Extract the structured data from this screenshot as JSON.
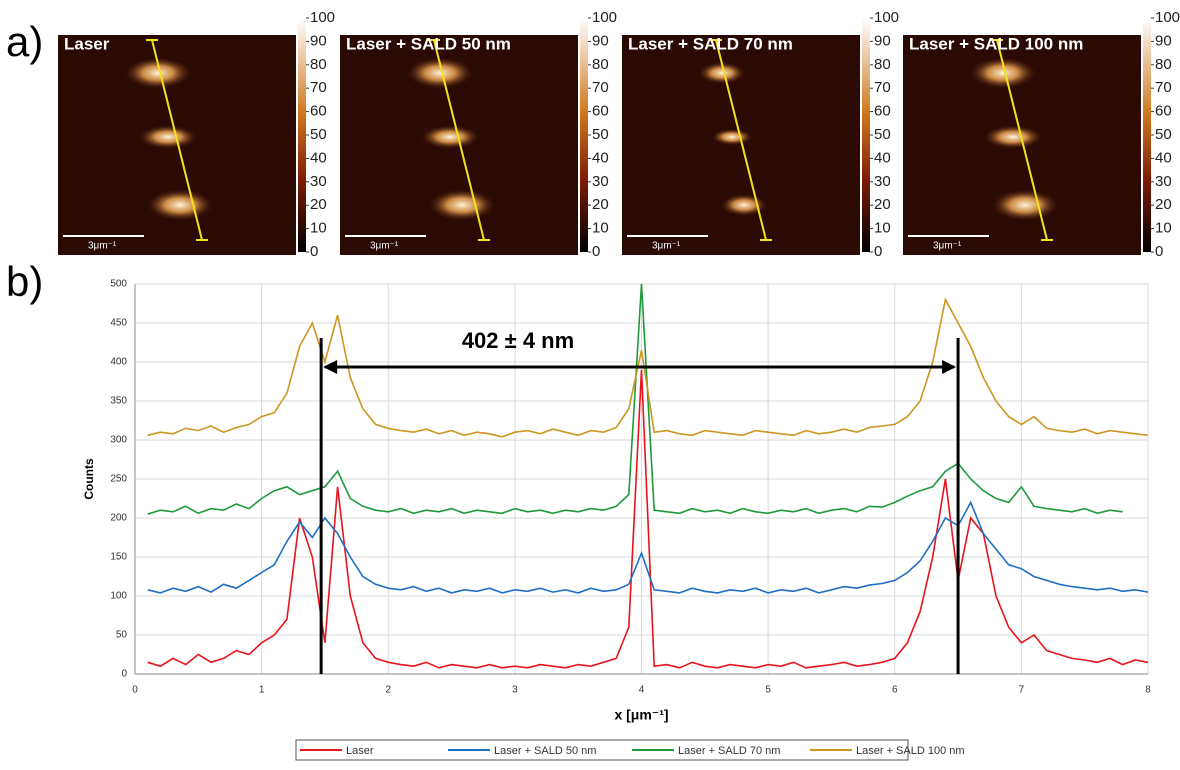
{
  "panel_labels": [
    "a)",
    "b)"
  ],
  "images": [
    {
      "label": "Laser",
      "scale_bar": "3μm⁻¹"
    },
    {
      "label": "Laser  + SALD 50 nm",
      "scale_bar": "3μm⁻¹"
    },
    {
      "label": "Laser  +  SALD 70 nm",
      "scale_bar": "3μm⁻¹"
    },
    {
      "label": "Laser + SALD 100 nm",
      "scale_bar": "3μm⁻¹"
    }
  ],
  "colorbar": {
    "lim": [
      0,
      100
    ],
    "ticks": [
      0,
      10,
      20,
      30,
      40,
      50,
      60,
      70,
      80,
      90,
      100
    ]
  },
  "chart_data": {
    "type": "line",
    "xlabel": "x [μm⁻¹]",
    "ylabel": "Counts",
    "annotation": "402 ± 4 nm",
    "vlines": [
      1.47,
      6.5
    ],
    "xlim": [
      0,
      8
    ],
    "ylim": [
      0,
      500
    ],
    "xticks": [
      0,
      1,
      2,
      3,
      4,
      5,
      6,
      7,
      8
    ],
    "yticks": [
      0,
      50,
      100,
      150,
      200,
      250,
      300,
      350,
      400,
      450,
      500
    ],
    "grid": true,
    "legend": "bottom",
    "x": [
      0.1,
      0.2,
      0.3,
      0.4,
      0.5,
      0.6,
      0.7,
      0.8,
      0.9,
      1.0,
      1.1,
      1.2,
      1.3,
      1.4,
      1.5,
      1.6,
      1.7,
      1.8,
      1.9,
      2.0,
      2.1,
      2.2,
      2.3,
      2.4,
      2.5,
      2.6,
      2.7,
      2.8,
      2.9,
      3.0,
      3.1,
      3.2,
      3.3,
      3.4,
      3.5,
      3.6,
      3.7,
      3.8,
      3.9,
      4.0,
      4.1,
      4.2,
      4.3,
      4.4,
      4.5,
      4.6,
      4.7,
      4.8,
      4.9,
      5.0,
      5.1,
      5.2,
      5.3,
      5.4,
      5.5,
      5.6,
      5.7,
      5.8,
      5.9,
      6.0,
      6.1,
      6.2,
      6.3,
      6.4,
      6.5,
      6.6,
      6.7,
      6.8,
      6.9,
      7.0,
      7.1,
      7.2,
      7.3,
      7.4,
      7.5,
      7.6,
      7.7,
      7.8,
      7.9,
      8.0
    ],
    "series": [
      {
        "name": "Laser",
        "color": "#e8141c",
        "values": [
          15,
          10,
          20,
          12,
          25,
          15,
          20,
          30,
          25,
          40,
          50,
          70,
          200,
          150,
          40,
          240,
          100,
          40,
          20,
          15,
          12,
          10,
          15,
          8,
          12,
          10,
          8,
          12,
          8,
          10,
          8,
          12,
          10,
          8,
          12,
          10,
          15,
          20,
          60,
          390,
          10,
          12,
          8,
          15,
          10,
          8,
          12,
          10,
          8,
          12,
          10,
          15,
          8,
          10,
          12,
          15,
          10,
          12,
          15,
          20,
          40,
          80,
          150,
          250,
          120,
          200,
          180,
          100,
          60,
          40,
          50,
          30,
          25,
          20,
          18,
          15,
          20,
          12,
          18,
          15
        ]
      },
      {
        "name": "Laser + SALD 50 nm",
        "color": "#1f6fc5",
        "values": [
          108,
          104,
          110,
          106,
          112,
          105,
          115,
          110,
          120,
          130,
          140,
          170,
          195,
          175,
          200,
          180,
          150,
          125,
          115,
          110,
          108,
          112,
          106,
          110,
          104,
          108,
          106,
          110,
          104,
          108,
          106,
          110,
          105,
          108,
          104,
          110,
          106,
          108,
          115,
          155,
          108,
          106,
          104,
          110,
          106,
          104,
          108,
          106,
          110,
          104,
          108,
          106,
          110,
          104,
          108,
          112,
          110,
          114,
          116,
          120,
          130,
          145,
          170,
          200,
          190,
          220,
          180,
          160,
          140,
          135,
          125,
          120,
          115,
          112,
          110,
          108,
          110,
          106,
          108,
          105
        ]
      },
      {
        "name": "Laser + SALD 70 nm",
        "color": "#1e9a3c",
        "values": [
          205,
          210,
          208,
          215,
          206,
          212,
          210,
          218,
          212,
          225,
          235,
          240,
          230,
          235,
          240,
          260,
          225,
          215,
          210,
          208,
          212,
          206,
          210,
          208,
          212,
          206,
          210,
          208,
          206,
          212,
          208,
          210,
          206,
          210,
          208,
          212,
          210,
          215,
          230,
          500,
          210,
          208,
          206,
          212,
          208,
          210,
          206,
          212,
          208,
          206,
          210,
          208,
          212,
          206,
          210,
          212,
          208,
          215,
          214,
          220,
          228,
          235,
          240,
          260,
          270,
          250,
          235,
          225,
          220,
          240,
          215,
          212,
          210,
          208,
          212,
          206,
          210,
          208,
          null,
          null
        ]
      },
      {
        "name": "Laser + SALD 100 nm",
        "color": "#cc9620",
        "values": [
          306,
          310,
          308,
          315,
          312,
          318,
          310,
          316,
          320,
          330,
          335,
          360,
          420,
          450,
          400,
          460,
          380,
          340,
          320,
          315,
          312,
          310,
          314,
          308,
          312,
          306,
          310,
          308,
          304,
          310,
          312,
          308,
          314,
          310,
          306,
          312,
          310,
          316,
          340,
          415,
          310,
          312,
          308,
          306,
          312,
          310,
          308,
          306,
          312,
          310,
          308,
          306,
          312,
          308,
          310,
          314,
          310,
          316,
          318,
          320,
          330,
          350,
          400,
          480,
          450,
          420,
          380,
          350,
          330,
          320,
          330,
          315,
          312,
          310,
          314,
          308,
          312,
          310,
          308,
          306
        ]
      }
    ]
  }
}
